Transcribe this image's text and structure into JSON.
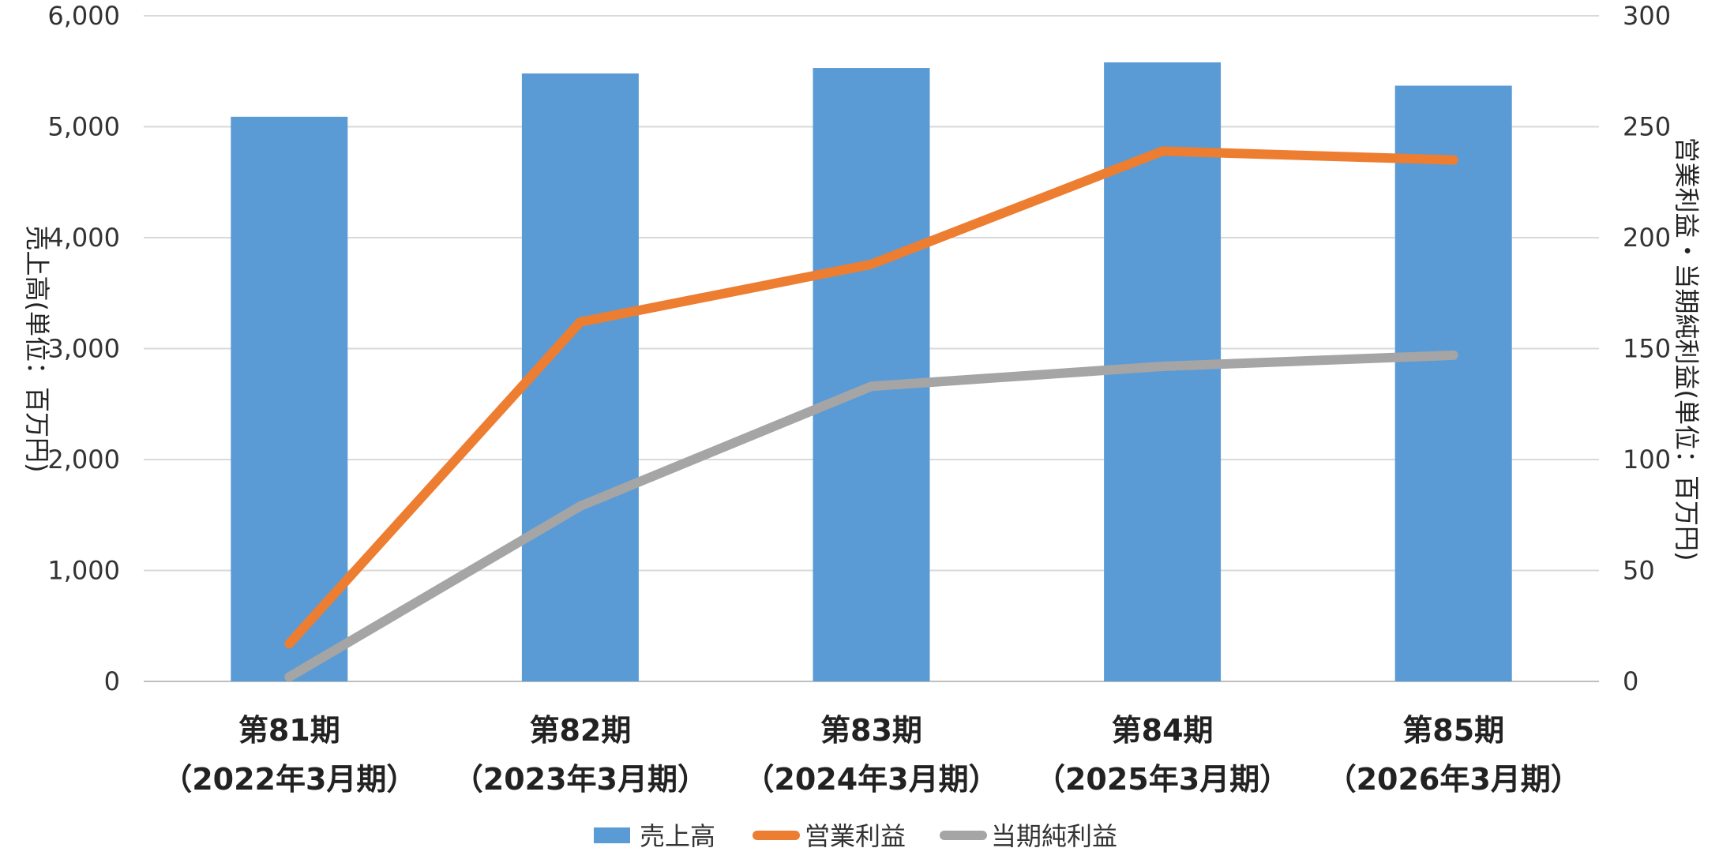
{
  "chart_data": {
    "type": "bar",
    "categories": [
      "第81期\n（2022年3月期）",
      "第82期\n（2023年3月期）",
      "第83期\n（2024年3月期）",
      "第84期\n（2025年3月期）",
      "第85期\n（2026年3月期）"
    ],
    "series": [
      {
        "name": "売上高",
        "type": "bar",
        "axis": "left",
        "color": "#5B9BD5",
        "values": [
          5090,
          5480,
          5530,
          5580,
          5370
        ]
      },
      {
        "name": "営業利益",
        "type": "line",
        "axis": "right",
        "color": "#ED7D31",
        "values": [
          17,
          162,
          188,
          239,
          235
        ]
      },
      {
        "name": "当期純利益",
        "type": "line",
        "axis": "right",
        "color": "#A5A5A5",
        "values": [
          2,
          79,
          133,
          142,
          147
        ]
      }
    ],
    "ylabel": "売上高(単位：百万円)",
    "y2label": "営業利益・当期純利益(単位：百万円)",
    "ylim": [
      0,
      6000
    ],
    "y2lim": [
      0,
      300
    ],
    "yticks": [
      "0",
      "1,000",
      "2,000",
      "3,000",
      "4,000",
      "5,000",
      "6,000"
    ],
    "y2ticks": [
      "0",
      "50",
      "100",
      "150",
      "200",
      "250",
      "300"
    ],
    "grid": true,
    "legend": "bottom"
  }
}
